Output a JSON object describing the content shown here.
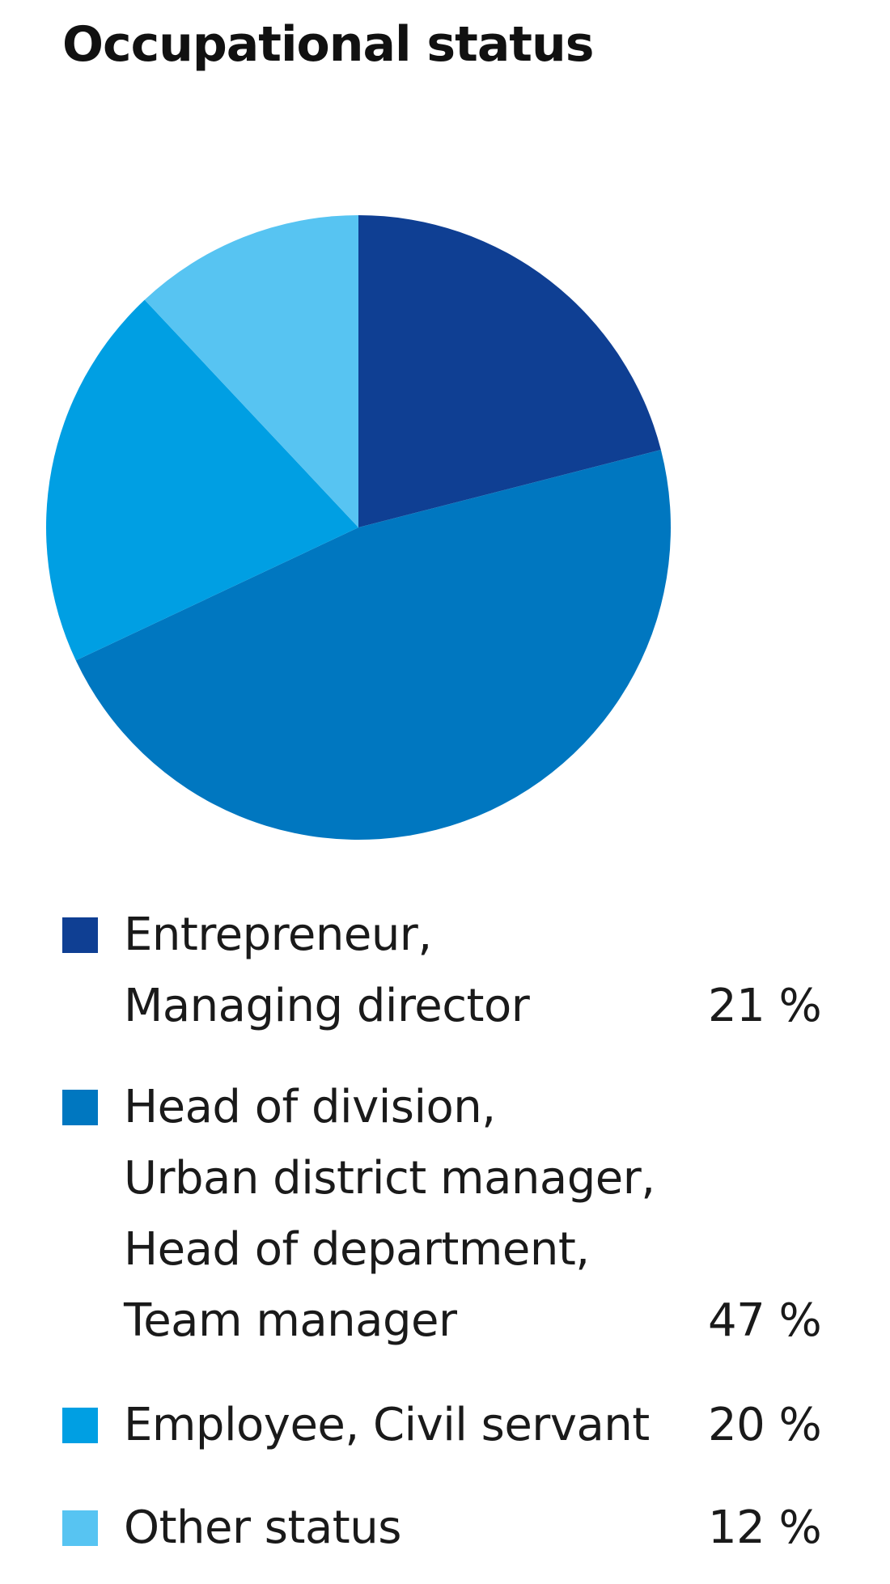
{
  "chart_data": {
    "type": "pie",
    "title": "Occupational status",
    "series": [
      {
        "name": "Entrepreneur, Managing director",
        "label_lines": [
          "Entrepreneur,",
          "Managing director"
        ],
        "value": 21,
        "value_label": "21 %",
        "color": "#0f3f93"
      },
      {
        "name": "Head of division, Urban district manager, Head of department, Team manager",
        "label_lines": [
          "Head of division,",
          "Urban district manager,",
          "Head of department,",
          "Team manager"
        ],
        "value": 47,
        "value_label": "47 %",
        "color": "#0077c0"
      },
      {
        "name": "Employee, Civil servant",
        "label_lines": [
          "Employee, Civil servant"
        ],
        "value": 20,
        "value_label": "20 %",
        "color": "#009fe3"
      },
      {
        "name": "Other status",
        "label_lines": [
          "Other status"
        ],
        "value": 12,
        "value_label": "12 %",
        "color": "#57c4f2"
      }
    ],
    "legend": "below"
  }
}
